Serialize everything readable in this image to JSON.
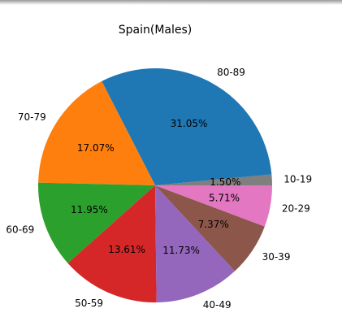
{
  "chart_data": {
    "type": "pie",
    "title": "Spain(Males)",
    "start_angle_deg": 0,
    "direction": "counterclockwise",
    "slices": [
      {
        "label": "10-19",
        "percent": 1.5,
        "pct_label": "1.50%",
        "color": "#7f7f7f"
      },
      {
        "label": "80-89",
        "percent": 31.05,
        "pct_label": "31.05%",
        "color": "#1f77b4"
      },
      {
        "label": "70-79",
        "percent": 17.07,
        "pct_label": "17.07%",
        "color": "#ff7f0e"
      },
      {
        "label": "60-69",
        "percent": 11.95,
        "pct_label": "11.95%",
        "color": "#2ca02c"
      },
      {
        "label": "50-59",
        "percent": 13.61,
        "pct_label": "13.61%",
        "color": "#d62728"
      },
      {
        "label": "40-49",
        "percent": 11.73,
        "pct_label": "11.73%",
        "color": "#9467bd"
      },
      {
        "label": "30-39",
        "percent": 7.37,
        "pct_label": "7.37%",
        "color": "#8c564b"
      },
      {
        "label": "20-29",
        "percent": 5.71,
        "pct_label": "5.71%",
        "color": "#e377c2"
      }
    ]
  }
}
